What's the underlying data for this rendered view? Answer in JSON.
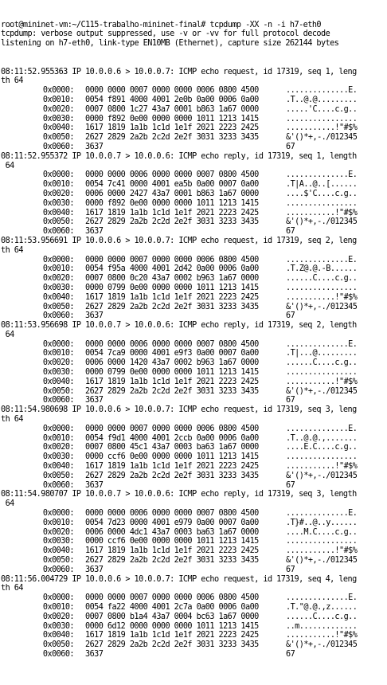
{
  "terminal": {
    "header_lines": [
      "root@mininet-vm:~/C115-trabalho-mininet-final# tcpdump -XX -n -i h7-eth0",
      "tcpdump: verbose output suppressed, use -v or -vv for full protocol decode",
      "listening on h7-eth0, link-type EN10MB (Ethernet), capture size 262144 bytes"
    ],
    "packets": [
      {
        "summary_lines": [
          "08:11:52.955363 IP 10.0.0.6 > 10.0.0.7: ICMP echo request, id 17319, seq 1, leng",
          "th 64"
        ],
        "rows": [
          {
            "offset": "0x0000:",
            "bytes": "0000 0000 0007 0000 0000 0006 0800 4500",
            "ascii": "..............E."
          },
          {
            "offset": "0x0010:",
            "bytes": "0054 f891 4000 4001 2e0b 0a00 0006 0a00",
            "ascii": ".T..@.@........."
          },
          {
            "offset": "0x0020:",
            "bytes": "0007 0800 1c27 43a7 0001 b863 1a67 0000",
            "ascii": ".....'C....c.g.."
          },
          {
            "offset": "0x0030:",
            "bytes": "0000 f892 0e00 0000 0000 1011 1213 1415",
            "ascii": "................"
          },
          {
            "offset": "0x0040:",
            "bytes": "1617 1819 1a1b 1c1d 1e1f 2021 2223 2425",
            "ascii": "...........!\"#$%"
          },
          {
            "offset": "0x0050:",
            "bytes": "2627 2829 2a2b 2c2d 2e2f 3031 3233 3435",
            "ascii": "&'()*+,-./012345"
          },
          {
            "offset": "0x0060:",
            "bytes": "3637",
            "ascii": "67"
          }
        ]
      },
      {
        "summary_lines": [
          "08:11:52.955372 IP 10.0.0.7 > 10.0.0.6: ICMP echo reply, id 17319, seq 1, length",
          " 64"
        ],
        "rows": [
          {
            "offset": "0x0000:",
            "bytes": "0000 0000 0006 0000 0000 0007 0800 4500",
            "ascii": "..............E."
          },
          {
            "offset": "0x0010:",
            "bytes": "0054 7c41 0000 4001 ea5b 0a00 0007 0a00",
            "ascii": ".T|A..@..[......"
          },
          {
            "offset": "0x0020:",
            "bytes": "0006 0000 2427 43a7 0001 b863 1a67 0000",
            "ascii": "....$'C....c.g.."
          },
          {
            "offset": "0x0030:",
            "bytes": "0000 f892 0e00 0000 0000 1011 1213 1415",
            "ascii": "................"
          },
          {
            "offset": "0x0040:",
            "bytes": "1617 1819 1a1b 1c1d 1e1f 2021 2223 2425",
            "ascii": "...........!\"#$%"
          },
          {
            "offset": "0x0050:",
            "bytes": "2627 2829 2a2b 2c2d 2e2f 3031 3233 3435",
            "ascii": "&'()*+,-./012345"
          },
          {
            "offset": "0x0060:",
            "bytes": "3637",
            "ascii": "67"
          }
        ]
      },
      {
        "summary_lines": [
          "08:11:53.956691 IP 10.0.0.6 > 10.0.0.7: ICMP echo request, id 17319, seq 2, leng",
          "th 64"
        ],
        "rows": [
          {
            "offset": "0x0000:",
            "bytes": "0000 0000 0007 0000 0000 0006 0800 4500",
            "ascii": "..............E."
          },
          {
            "offset": "0x0010:",
            "bytes": "0054 f95a 4000 4001 2d42 0a00 0006 0a00",
            "ascii": ".T.Z@.@.-B......"
          },
          {
            "offset": "0x0020:",
            "bytes": "0007 0800 0c20 43a7 0002 b963 1a67 0000",
            "ascii": "......C....c.g.."
          },
          {
            "offset": "0x0030:",
            "bytes": "0000 0799 0e00 0000 0000 1011 1213 1415",
            "ascii": "................"
          },
          {
            "offset": "0x0040:",
            "bytes": "1617 1819 1a1b 1c1d 1e1f 2021 2223 2425",
            "ascii": "...........!\"#$%"
          },
          {
            "offset": "0x0050:",
            "bytes": "2627 2829 2a2b 2c2d 2e2f 3031 3233 3435",
            "ascii": "&'()*+,-./012345"
          },
          {
            "offset": "0x0060:",
            "bytes": "3637",
            "ascii": "67"
          }
        ]
      },
      {
        "summary_lines": [
          "08:11:53.956698 IP 10.0.0.7 > 10.0.0.6: ICMP echo reply, id 17319, seq 2, length",
          " 64"
        ],
        "rows": [
          {
            "offset": "0x0000:",
            "bytes": "0000 0000 0006 0000 0000 0007 0800 4500",
            "ascii": "..............E."
          },
          {
            "offset": "0x0010:",
            "bytes": "0054 7ca9 0000 4001 e9f3 0a00 0007 0a00",
            "ascii": ".T|...@........."
          },
          {
            "offset": "0x0020:",
            "bytes": "0006 0000 1420 43a7 0002 b963 1a67 0000",
            "ascii": "......C....c.g.."
          },
          {
            "offset": "0x0030:",
            "bytes": "0000 0799 0e00 0000 0000 1011 1213 1415",
            "ascii": "................"
          },
          {
            "offset": "0x0040:",
            "bytes": "1617 1819 1a1b 1c1d 1e1f 2021 2223 2425",
            "ascii": "...........!\"#$%"
          },
          {
            "offset": "0x0050:",
            "bytes": "2627 2829 2a2b 2c2d 2e2f 3031 3233 3435",
            "ascii": "&'()*+,-./012345"
          },
          {
            "offset": "0x0060:",
            "bytes": "3637",
            "ascii": "67"
          }
        ]
      },
      {
        "summary_lines": [
          "08:11:54.980698 IP 10.0.0.6 > 10.0.0.7: ICMP echo request, id 17319, seq 3, leng",
          "th 64"
        ],
        "rows": [
          {
            "offset": "0x0000:",
            "bytes": "0000 0000 0007 0000 0000 0006 0800 4500",
            "ascii": "..............E."
          },
          {
            "offset": "0x0010:",
            "bytes": "0054 f9d1 4000 4001 2ccb 0a00 0006 0a00",
            "ascii": ".T..@.@.,......."
          },
          {
            "offset": "0x0020:",
            "bytes": "0007 0800 45c1 43a7 0003 ba63 1a67 0000",
            "ascii": "....E.C....c.g.."
          },
          {
            "offset": "0x0030:",
            "bytes": "0000 ccf6 0e00 0000 0000 1011 1213 1415",
            "ascii": "................"
          },
          {
            "offset": "0x0040:",
            "bytes": "1617 1819 1a1b 1c1d 1e1f 2021 2223 2425",
            "ascii": "...........!\"#$%"
          },
          {
            "offset": "0x0050:",
            "bytes": "2627 2829 2a2b 2c2d 2e2f 3031 3233 3435",
            "ascii": "&'()*+,-./012345"
          },
          {
            "offset": "0x0060:",
            "bytes": "3637",
            "ascii": "67"
          }
        ]
      },
      {
        "summary_lines": [
          "08:11:54.980707 IP 10.0.0.7 > 10.0.0.6: ICMP echo reply, id 17319, seq 3, length",
          " 64"
        ],
        "rows": [
          {
            "offset": "0x0000:",
            "bytes": "0000 0000 0006 0000 0000 0007 0800 4500",
            "ascii": "..............E."
          },
          {
            "offset": "0x0010:",
            "bytes": "0054 7d23 0000 4001 e979 0a00 0007 0a00",
            "ascii": ".T}#..@..y......"
          },
          {
            "offset": "0x0020:",
            "bytes": "0006 0000 4dc1 43a7 0003 ba63 1a67 0000",
            "ascii": "....M.C....c.g.."
          },
          {
            "offset": "0x0030:",
            "bytes": "0000 ccf6 0e00 0000 0000 1011 1213 1415",
            "ascii": "................"
          },
          {
            "offset": "0x0040:",
            "bytes": "1617 1819 1a1b 1c1d 1e1f 2021 2223 2425",
            "ascii": "...........!\"#$%"
          },
          {
            "offset": "0x0050:",
            "bytes": "2627 2829 2a2b 2c2d 2e2f 3031 3233 3435",
            "ascii": "&'()*+,-./012345"
          },
          {
            "offset": "0x0060:",
            "bytes": "3637",
            "ascii": "67"
          }
        ]
      },
      {
        "summary_lines": [
          "08:11:56.004729 IP 10.0.0.6 > 10.0.0.7: ICMP echo request, id 17319, seq 4, leng",
          "th 64"
        ],
        "rows": [
          {
            "offset": "0x0000:",
            "bytes": "0000 0000 0007 0000 0000 0006 0800 4500",
            "ascii": "..............E."
          },
          {
            "offset": "0x0010:",
            "bytes": "0054 fa22 4000 4001 2c7a 0a00 0006 0a00",
            "ascii": ".T.\"@.@.,z......"
          },
          {
            "offset": "0x0020:",
            "bytes": "0007 0800 b1a4 43a7 0004 bc63 1a67 0000",
            "ascii": "......C....c.g.."
          },
          {
            "offset": "0x0030:",
            "bytes": "0000 6d12 0000 0000 0000 1011 1213 1415",
            "ascii": "..m............."
          },
          {
            "offset": "0x0040:",
            "bytes": "1617 1819 1a1b 1c1d 1e1f 2021 2223 2425",
            "ascii": "...........!\"#$%"
          },
          {
            "offset": "0x0050:",
            "bytes": "2627 2829 2a2b 2c2d 2e2f 3031 3233 3435",
            "ascii": "&'()*+,-./012345"
          },
          {
            "offset": "0x0060:",
            "bytes": "3637",
            "ascii": "67"
          }
        ]
      }
    ]
  }
}
